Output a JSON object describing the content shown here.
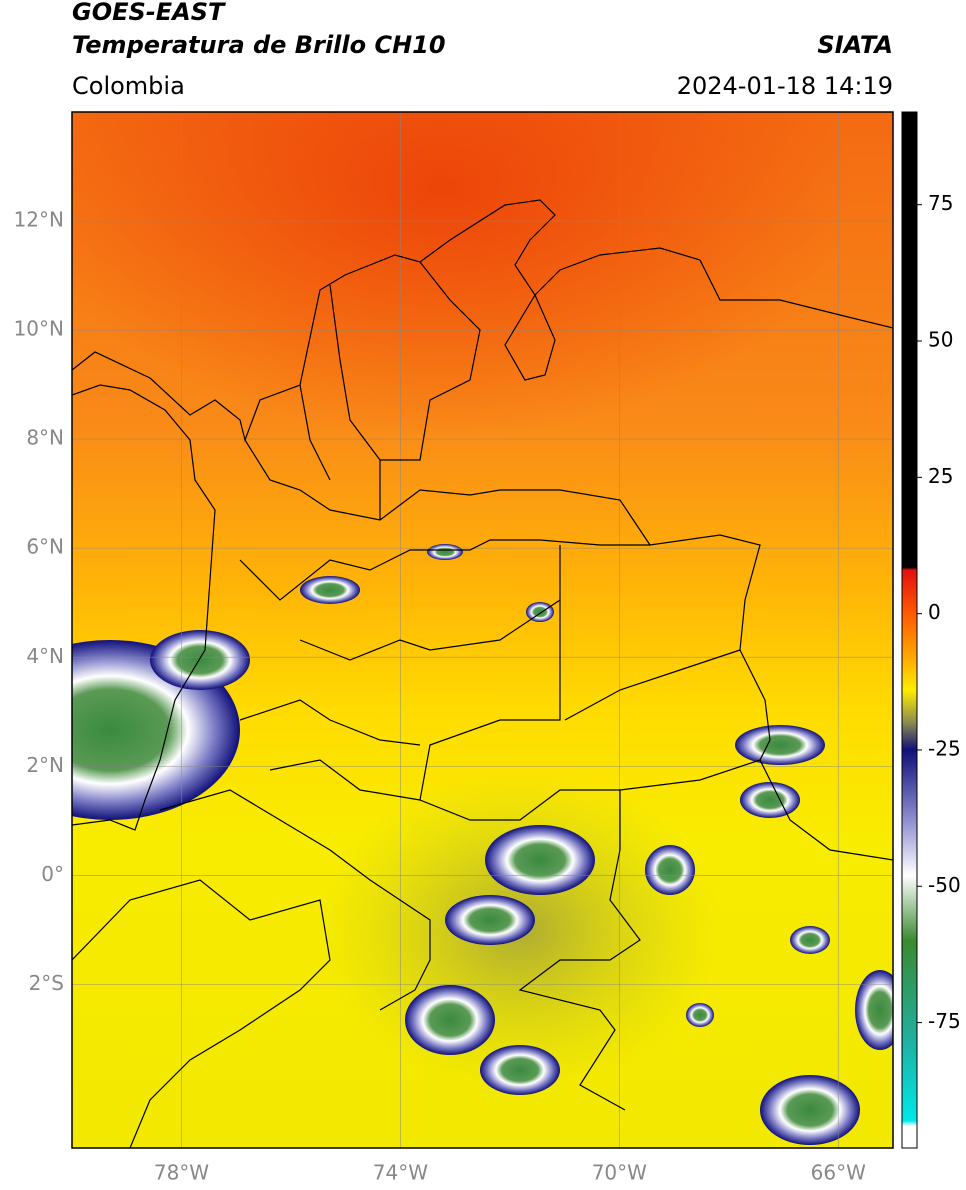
{
  "chart_data": {
    "type": "map",
    "title": "GOES-EAST",
    "subtitle": "Temperatura de Brillo CH10",
    "source": "SIATA",
    "region": "Colombia",
    "datetime": "2024-01-18 14:19",
    "xlim": [
      -80,
      -65
    ],
    "ylim": [
      -5,
      14
    ],
    "xticks": [
      {
        "value": -78,
        "label": "78°W"
      },
      {
        "value": -74,
        "label": "74°W"
      },
      {
        "value": -70,
        "label": "70°W"
      },
      {
        "value": -66,
        "label": "66°W"
      }
    ],
    "yticks": [
      {
        "value": 12,
        "label": "12°N"
      },
      {
        "value": 10,
        "label": "10°N"
      },
      {
        "value": 8,
        "label": "8°N"
      },
      {
        "value": 6,
        "label": "6°N"
      },
      {
        "value": 4,
        "label": "4°N"
      },
      {
        "value": 2,
        "label": "2°N"
      },
      {
        "value": 0,
        "label": "0°"
      },
      {
        "value": -2,
        "label": "2°S"
      }
    ],
    "grid": true,
    "colorbar": {
      "lim": [
        -98,
        92
      ],
      "ticks": [
        75,
        50,
        25,
        0,
        -25,
        -50,
        -75
      ],
      "stops": [
        {
          "value": 92,
          "color": "#000000"
        },
        {
          "value": 8.5,
          "color": "#000000"
        },
        {
          "value": 8,
          "color": "#e01010"
        },
        {
          "value": 0,
          "color": "#ff5a00"
        },
        {
          "value": -8,
          "color": "#ffa800"
        },
        {
          "value": -14,
          "color": "#ffee00"
        },
        {
          "value": -20,
          "color": "#8a8a50"
        },
        {
          "value": -25,
          "color": "#10107a"
        },
        {
          "value": -38,
          "color": "#9090d0"
        },
        {
          "value": -48,
          "color": "#ffffff"
        },
        {
          "value": -60,
          "color": "#3a8a30"
        },
        {
          "value": -78,
          "color": "#20b0a0"
        },
        {
          "value": -93,
          "color": "#00e8e8"
        },
        {
          "value": -94,
          "color": "#ffffff"
        },
        {
          "value": -98,
          "color": "#ffffff"
        }
      ]
    }
  }
}
